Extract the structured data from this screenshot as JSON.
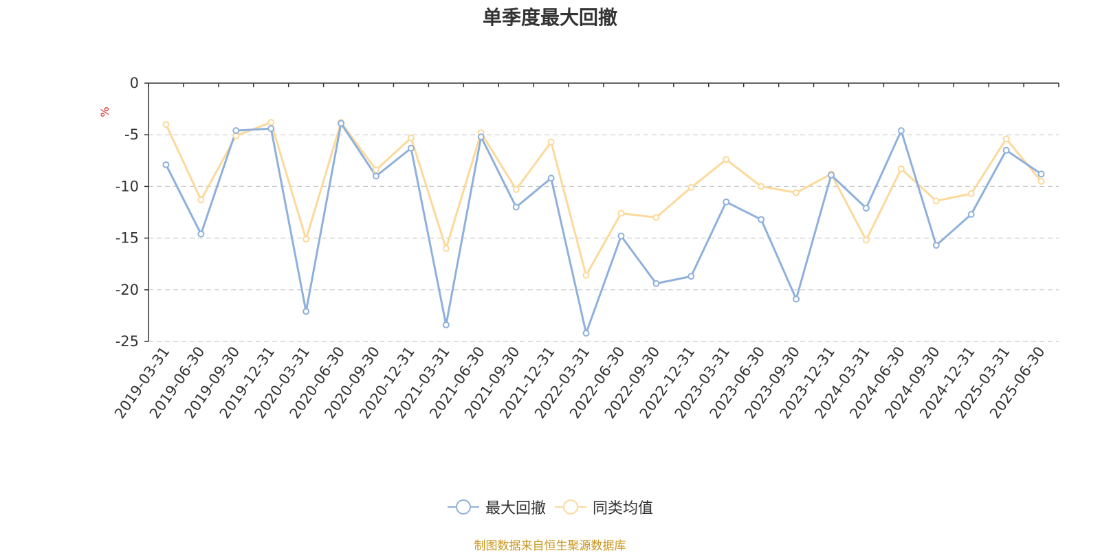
{
  "chart_data": {
    "type": "line",
    "title": "单季度最大回撤",
    "ylabel": "%",
    "ylim": [
      -25,
      0
    ],
    "yticks": [
      0,
      -5,
      -10,
      -15,
      -20,
      -25
    ],
    "grid": true,
    "legend_position": "bottom",
    "categories": [
      "2019-03-31",
      "2019-06-30",
      "2019-09-30",
      "2019-12-31",
      "2020-03-31",
      "2020-06-30",
      "2020-09-30",
      "2020-12-31",
      "2021-03-31",
      "2021-06-30",
      "2021-09-30",
      "2021-12-31",
      "2022-03-31",
      "2022-06-30",
      "2022-09-30",
      "2022-12-31",
      "2023-03-31",
      "2023-06-30",
      "2023-09-30",
      "2023-12-31",
      "2024-03-31",
      "2024-06-30",
      "2024-09-30",
      "2024-12-31",
      "2025-03-31",
      "2025-06-30"
    ],
    "series": [
      {
        "name": "最大回撤",
        "color": "#8eb0dc",
        "values": [
          -7.9,
          -14.6,
          -4.6,
          -4.4,
          -22.1,
          -3.9,
          -9.0,
          -6.3,
          -23.4,
          -5.2,
          -12.0,
          -9.2,
          -24.2,
          -14.8,
          -19.4,
          -18.7,
          -11.5,
          -13.2,
          -20.9,
          -8.9,
          -12.1,
          -4.6,
          -15.7,
          -12.7,
          -6.5,
          -8.8
        ]
      },
      {
        "name": "同类均值",
        "color": "#fcd99a",
        "values": [
          -4.0,
          -11.3,
          -5.1,
          -3.8,
          -15.1,
          -3.8,
          -8.4,
          -5.3,
          -16.0,
          -4.8,
          -10.3,
          -5.7,
          -18.6,
          -12.6,
          -13.0,
          -10.1,
          -7.4,
          -10.0,
          -10.6,
          -8.8,
          -15.2,
          -8.3,
          -11.4,
          -10.7,
          -5.4,
          -9.5
        ]
      }
    ]
  },
  "source": "制图数据来自恒生聚源数据库"
}
